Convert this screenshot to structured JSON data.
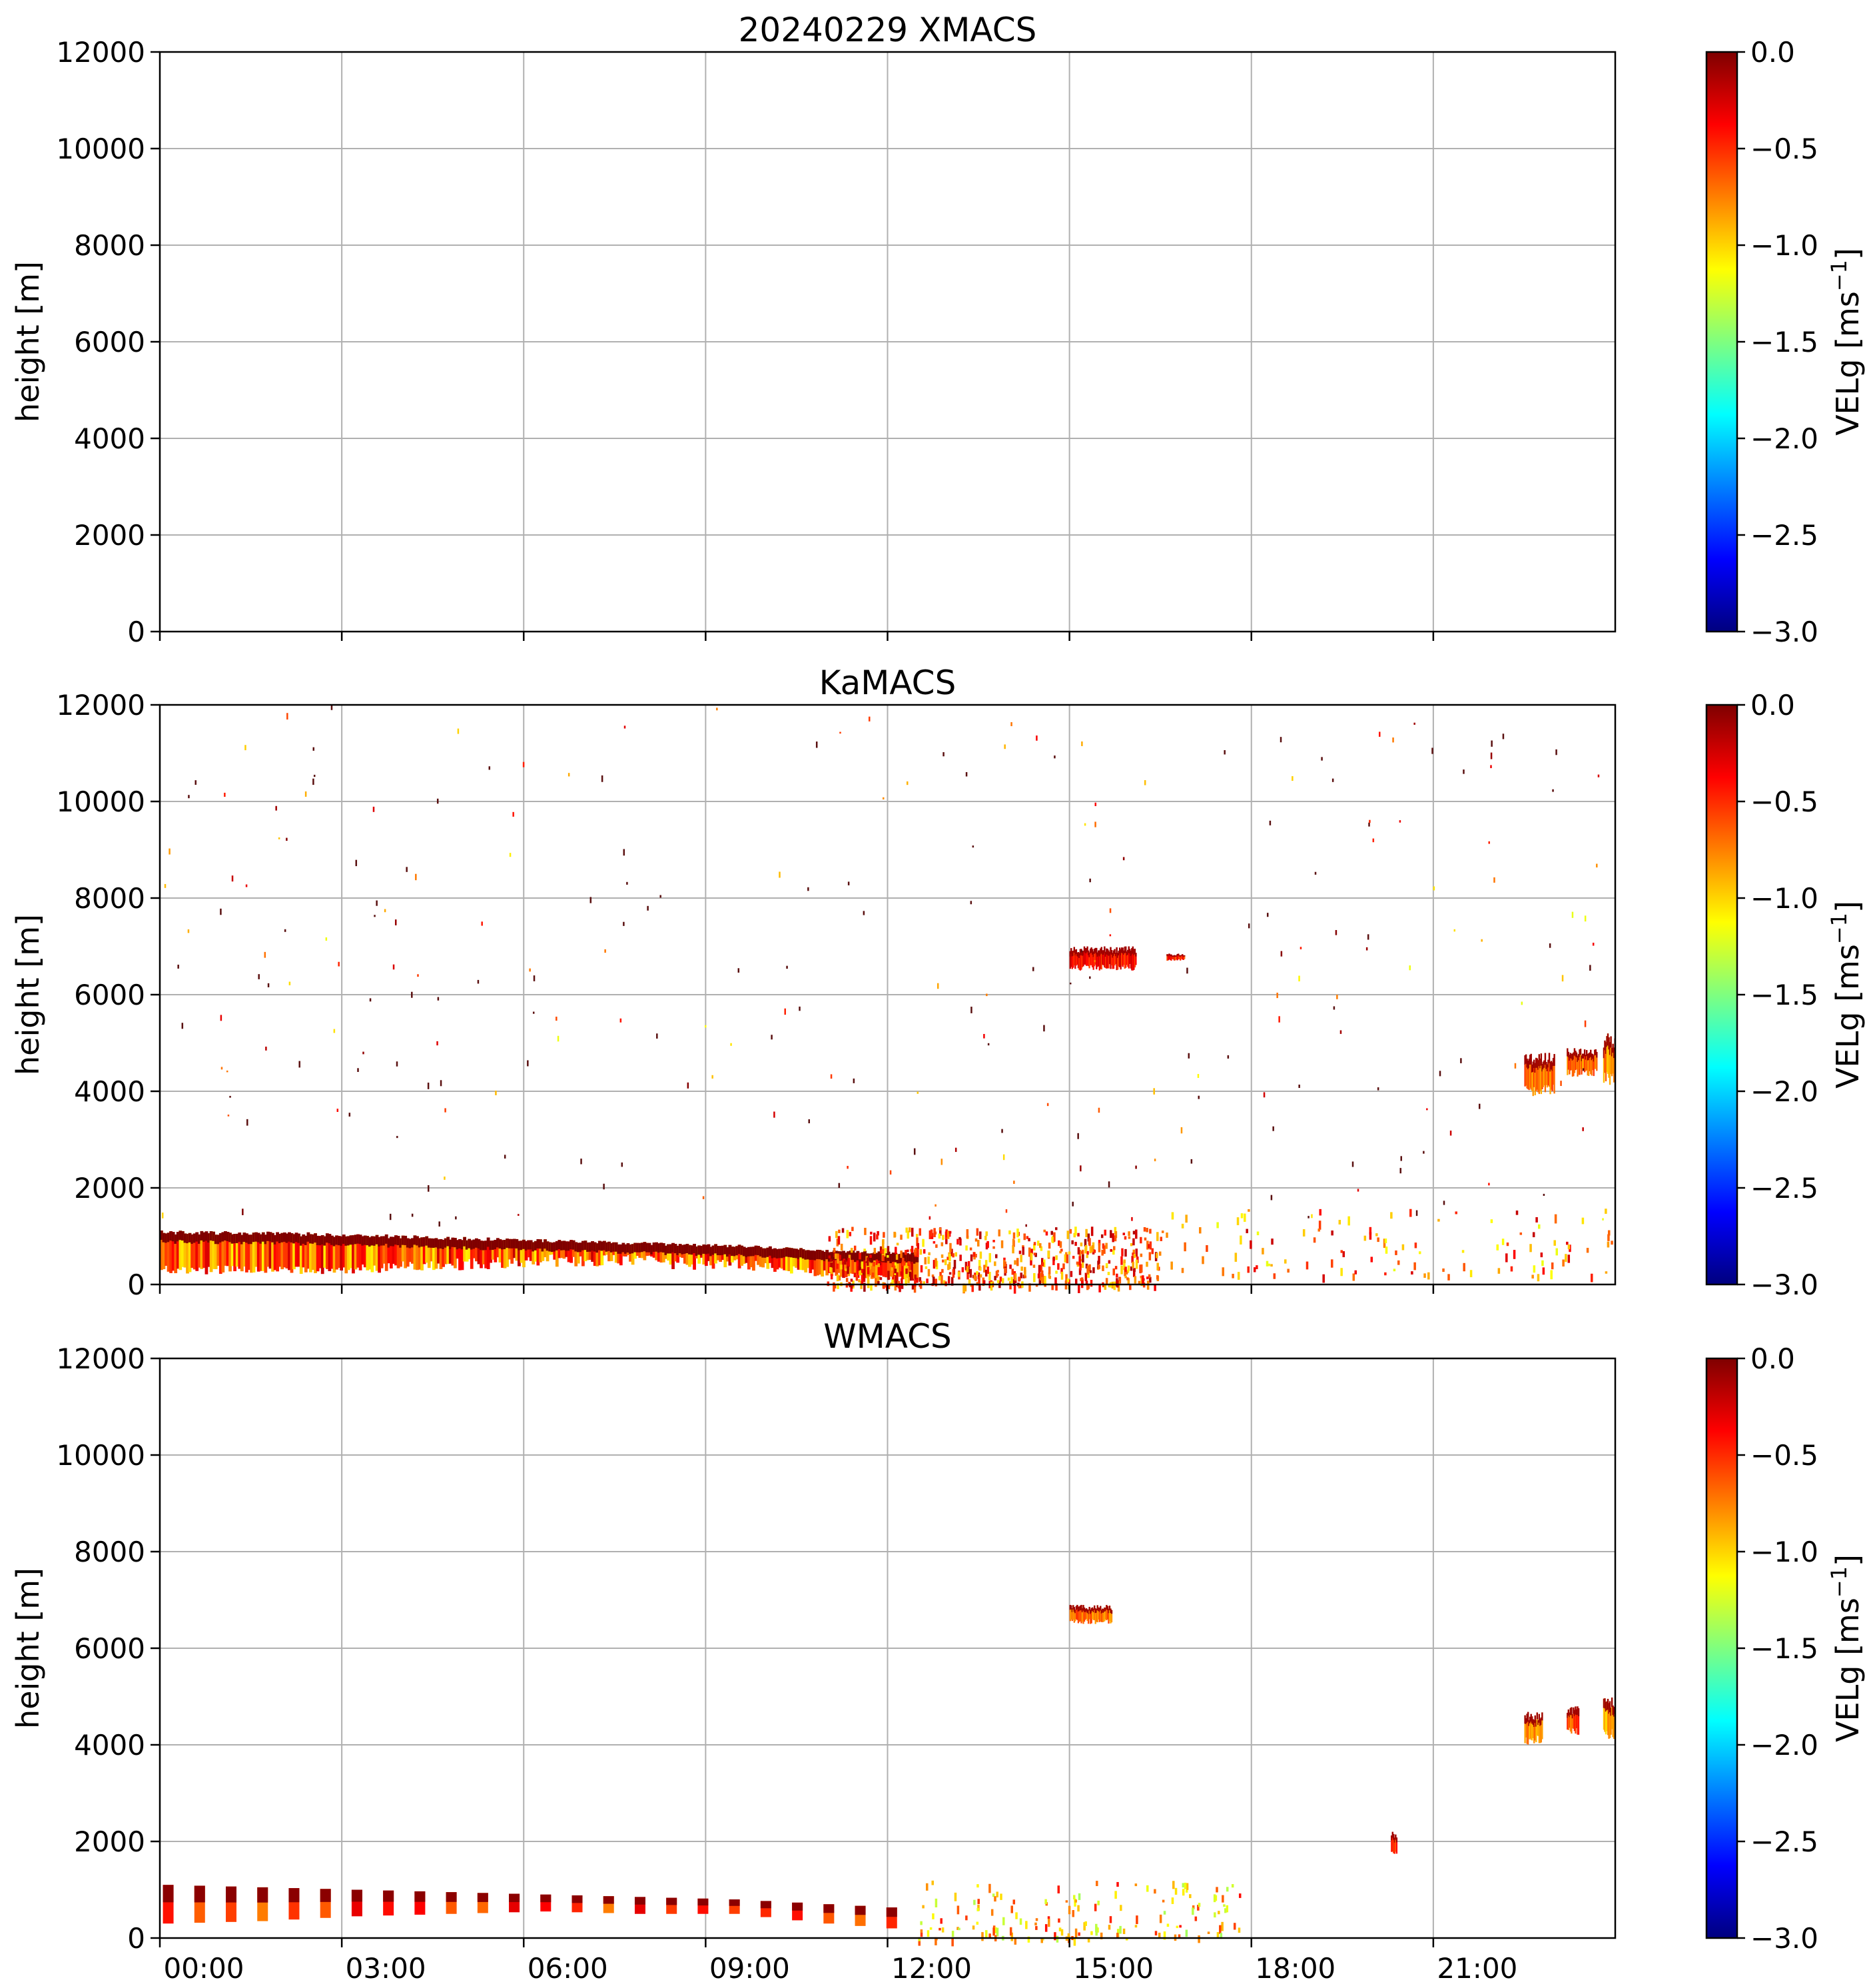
{
  "colors": {
    "colormap": "jet",
    "colormap_stops": [
      "#00007f",
      "#0000ff",
      "#007fff",
      "#00ffff",
      "#7fff7f",
      "#ffff00",
      "#ff7f00",
      "#ff0000",
      "#7f0000"
    ],
    "grid": "#b0b0b0",
    "background": "#ffffff"
  },
  "chart_data": [
    {
      "type": "heatmap",
      "title": "20240229 XMACS",
      "xlabel": "",
      "ylabel": "height [m]",
      "xlim": [
        "00:00",
        "24:00"
      ],
      "ylim": [
        0,
        12000
      ],
      "y_ticks": [
        "0",
        "2000",
        "4000",
        "6000",
        "8000",
        "10000",
        "12000"
      ],
      "x_tick_labels": [],
      "grid": true,
      "colorbar": {
        "label": "VELg [ms",
        "label_superscript": "−1",
        "label_suffix": "]",
        "range": [
          -3.0,
          0.0
        ],
        "ticks": [
          "0.0",
          "−0.5",
          "−1.0",
          "−1.5",
          "−2.0",
          "−2.5",
          "−3.0"
        ]
      },
      "features": []
    },
    {
      "type": "heatmap",
      "title": "KaMACS",
      "xlabel": "",
      "ylabel": "height [m]",
      "xlim": [
        "00:00",
        "24:00"
      ],
      "ylim": [
        0,
        12000
      ],
      "y_ticks": [
        "0",
        "2000",
        "4000",
        "6000",
        "8000",
        "10000",
        "12000"
      ],
      "x_tick_labels": [],
      "grid": true,
      "colorbar": {
        "label": "VELg [ms",
        "label_superscript": "−1",
        "label_suffix": "]",
        "range": [
          -3.0,
          0.0
        ],
        "ticks": [
          "0.0",
          "−0.5",
          "−1.0",
          "−1.5",
          "−2.0",
          "−2.5",
          "−3.0"
        ]
      },
      "features": [
        {
          "kind": "low_layer",
          "t0": 0.0,
          "t1": 12.5,
          "top": [
            1100,
            1080,
            1050,
            1000,
            950,
            900,
            850,
            800,
            700,
            650
          ],
          "bottom": [
            300,
            300,
            300,
            380,
            450,
            500,
            450,
            400,
            200,
            100
          ],
          "vel": -0.2
        },
        {
          "kind": "scatter_cluster",
          "t0": 11.0,
          "t1": 16.5,
          "h0": 0,
          "h1": 1200,
          "n": 600,
          "vel": -0.1
        },
        {
          "kind": "scatter_cluster",
          "t0": 16.5,
          "t1": 24.0,
          "h0": 200,
          "h1": 1600,
          "n": 120,
          "vel": -0.2
        },
        {
          "kind": "cloud",
          "t0": 15.0,
          "t1": 16.1,
          "h0": 6500,
          "h1": 7000,
          "vel": -0.2
        },
        {
          "kind": "cloud",
          "t0": 16.6,
          "t1": 16.9,
          "h0": 6700,
          "h1": 6850,
          "vel": -0.3
        },
        {
          "kind": "cloud",
          "t0": 22.5,
          "t1": 23.0,
          "h0": 3900,
          "h1": 4800,
          "vel": -0.5
        },
        {
          "kind": "cloud",
          "t0": 23.2,
          "t1": 23.7,
          "h0": 4300,
          "h1": 4900,
          "vel": -0.5
        },
        {
          "kind": "cloud",
          "t0": 23.8,
          "t1": 24.0,
          "h0": 4100,
          "h1": 5200,
          "vel": -0.6
        },
        {
          "kind": "sparse_noise",
          "t0": 0.0,
          "t1": 24.0,
          "h0": 1200,
          "h1": 12000,
          "n": 260
        }
      ]
    },
    {
      "type": "heatmap",
      "title": "WMACS",
      "xlabel": "",
      "ylabel": "height [m]",
      "xlim": [
        "00:00",
        "24:00"
      ],
      "ylim": [
        0,
        12000
      ],
      "y_ticks": [
        "0",
        "2000",
        "4000",
        "6000",
        "8000",
        "10000",
        "12000"
      ],
      "x_tick_labels": [
        "00:00",
        "03:00",
        "06:00",
        "09:00",
        "12:00",
        "15:00",
        "18:00",
        "21:00"
      ],
      "grid": true,
      "colorbar": {
        "label": "VELg [ms",
        "label_superscript": "−1",
        "label_suffix": "]",
        "range": [
          -3.0,
          0.0
        ],
        "ticks": [
          "0.0",
          "−0.5",
          "−1.0",
          "−1.5",
          "−2.0",
          "−2.5",
          "−3.0"
        ]
      },
      "features": [
        {
          "kind": "column_series",
          "t0": 0.05,
          "t1": 12.5,
          "n": 24,
          "top": [
            1100,
            1050,
            1000,
            950,
            900,
            850,
            800,
            700,
            600
          ],
          "bottom": [
            300,
            350,
            450,
            500,
            550,
            500,
            500,
            300,
            150
          ],
          "vel": -0.3
        },
        {
          "kind": "scatter_cluster",
          "t0": 12.5,
          "t1": 17.8,
          "h0": 0,
          "h1": 1200,
          "n": 160,
          "vel": -0.4
        },
        {
          "kind": "cloud",
          "t0": 15.0,
          "t1": 15.7,
          "h0": 6500,
          "h1": 6900,
          "vel": -0.5
        },
        {
          "kind": "cloud",
          "t0": 22.5,
          "t1": 22.8,
          "h0": 4000,
          "h1": 4700,
          "vel": -0.6
        },
        {
          "kind": "cloud",
          "t0": 23.2,
          "t1": 23.4,
          "h0": 4200,
          "h1": 4800,
          "vel": -0.4
        },
        {
          "kind": "cloud",
          "t0": 23.8,
          "t1": 24.0,
          "h0": 4100,
          "h1": 5000,
          "vel": -0.7
        },
        {
          "kind": "cloud",
          "t0": 20.3,
          "t1": 20.4,
          "h0": 1700,
          "h1": 2200,
          "vel": -0.3
        }
      ]
    }
  ]
}
